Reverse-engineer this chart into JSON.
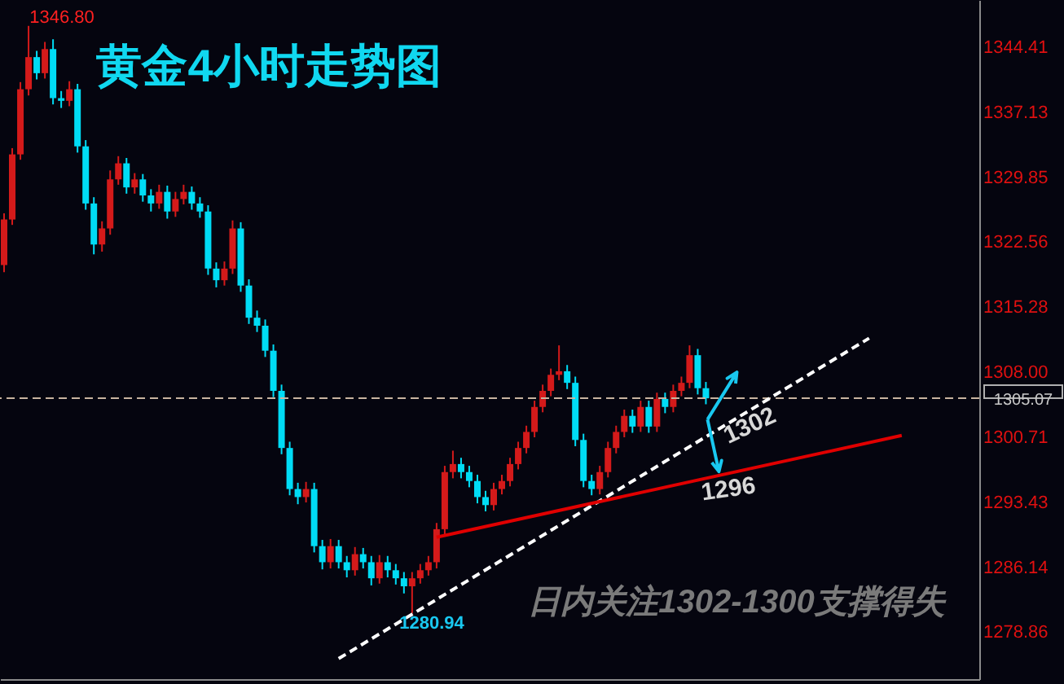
{
  "chart_data": {
    "type": "candlestick",
    "title": "黄金4小时走势图",
    "categories": [
      null,
      null,
      null,
      null,
      null,
      null,
      null,
      null,
      null,
      null,
      null,
      null,
      null,
      null,
      null,
      null,
      null,
      null,
      null,
      null,
      null,
      null,
      null,
      null,
      null,
      null,
      null,
      null,
      null,
      null,
      null,
      null,
      null,
      null,
      null,
      null,
      null,
      null,
      null,
      null,
      null,
      null,
      null,
      null,
      null,
      null,
      null,
      null,
      null,
      null,
      null,
      null,
      null,
      null,
      null,
      null,
      null,
      null,
      null,
      null,
      null,
      null,
      null,
      null,
      null,
      null,
      null,
      null,
      null,
      null,
      null,
      null,
      null,
      null,
      null,
      null,
      null,
      null,
      null,
      null,
      null,
      null,
      null,
      null,
      null,
      null,
      null,
      null,
      null,
      null,
      null,
      null,
      null,
      null,
      null,
      null,
      null,
      null,
      null,
      null,
      null,
      null,
      null,
      null,
      null,
      null,
      null,
      null,
      null,
      null,
      null,
      null,
      null,
      null,
      null,
      null,
      null,
      null,
      null,
      null
    ],
    "ohlc": [
      [
        1320.0,
        1325.8,
        1319.2,
        1325.1
      ],
      [
        1325.1,
        1333.1,
        1324.5,
        1332.4
      ],
      [
        1332.4,
        1340.5,
        1331.8,
        1339.7
      ],
      [
        1339.7,
        1346.8,
        1339.0,
        1343.3
      ],
      [
        1343.3,
        1344.0,
        1340.8,
        1341.5
      ],
      [
        1341.5,
        1345.0,
        1340.9,
        1344.2
      ],
      [
        1344.2,
        1345.3,
        1338.0,
        1338.7
      ],
      [
        1338.7,
        1339.5,
        1337.6,
        1338.4
      ],
      [
        1338.4,
        1340.6,
        1337.8,
        1339.7
      ],
      [
        1339.7,
        1340.3,
        1332.6,
        1333.3
      ],
      [
        1333.3,
        1334.0,
        1326.2,
        1326.9
      ],
      [
        1326.9,
        1327.6,
        1321.2,
        1322.3
      ],
      [
        1322.3,
        1324.9,
        1321.5,
        1324.1
      ],
      [
        1324.1,
        1330.6,
        1323.4,
        1329.6
      ],
      [
        1329.6,
        1332.2,
        1329.0,
        1331.4
      ],
      [
        1331.4,
        1332.0,
        1328.0,
        1328.7
      ],
      [
        1328.7,
        1330.3,
        1328.0,
        1329.6
      ],
      [
        1329.6,
        1330.2,
        1327.1,
        1327.8
      ],
      [
        1327.8,
        1328.5,
        1326.0,
        1326.9
      ],
      [
        1326.9,
        1329.0,
        1326.3,
        1328.2
      ],
      [
        1328.2,
        1328.9,
        1325.2,
        1326.0
      ],
      [
        1326.0,
        1328.2,
        1325.4,
        1327.4
      ],
      [
        1327.4,
        1329.0,
        1326.8,
        1328.2
      ],
      [
        1328.2,
        1328.8,
        1326.2,
        1326.9
      ],
      [
        1326.9,
        1327.6,
        1325.3,
        1326.0
      ],
      [
        1326.0,
        1326.7,
        1318.9,
        1319.6
      ],
      [
        1319.6,
        1320.3,
        1317.5,
        1318.3
      ],
      [
        1318.3,
        1320.4,
        1317.7,
        1319.6
      ],
      [
        1319.6,
        1325.0,
        1319.0,
        1324.1
      ],
      [
        1324.1,
        1324.8,
        1317.0,
        1317.7
      ],
      [
        1317.7,
        1318.4,
        1313.4,
        1314.1
      ],
      [
        1314.1,
        1314.9,
        1312.5,
        1313.2
      ],
      [
        1313.2,
        1313.9,
        1309.7,
        1310.4
      ],
      [
        1310.4,
        1311.1,
        1305.2,
        1305.9
      ],
      [
        1305.9,
        1306.6,
        1298.8,
        1299.5
      ],
      [
        1299.5,
        1300.2,
        1294.2,
        1294.9
      ],
      [
        1294.9,
        1295.6,
        1293.2,
        1294.0
      ],
      [
        1294.0,
        1295.7,
        1293.4,
        1294.9
      ],
      [
        1294.9,
        1295.6,
        1287.8,
        1288.5
      ],
      [
        1288.5,
        1289.2,
        1285.9,
        1286.7
      ],
      [
        1286.7,
        1289.3,
        1286.0,
        1288.5
      ],
      [
        1288.5,
        1289.2,
        1286.0,
        1286.7
      ],
      [
        1286.7,
        1287.4,
        1285.0,
        1285.8
      ],
      [
        1285.8,
        1288.4,
        1285.2,
        1287.6
      ],
      [
        1287.6,
        1288.3,
        1286.0,
        1286.7
      ],
      [
        1286.7,
        1287.4,
        1284.1,
        1284.9
      ],
      [
        1284.9,
        1287.5,
        1284.3,
        1286.7
      ],
      [
        1286.7,
        1287.4,
        1285.0,
        1285.8
      ],
      [
        1285.8,
        1286.5,
        1284.2,
        1284.9
      ],
      [
        1284.9,
        1285.6,
        1283.2,
        1284.0
      ],
      [
        1284.0,
        1285.6,
        1280.94,
        1284.9
      ],
      [
        1284.9,
        1286.5,
        1284.3,
        1285.8
      ],
      [
        1285.8,
        1287.4,
        1285.2,
        1286.7
      ],
      [
        1286.7,
        1291.1,
        1286.0,
        1290.4
      ],
      [
        1290.4,
        1297.5,
        1289.7,
        1296.8
      ],
      [
        1296.8,
        1299.2,
        1296.1,
        1297.7
      ],
      [
        1297.7,
        1298.4,
        1296.1,
        1296.8
      ],
      [
        1296.8,
        1297.5,
        1295.1,
        1295.8
      ],
      [
        1295.8,
        1296.5,
        1293.3,
        1294.0
      ],
      [
        1294.0,
        1294.7,
        1292.4,
        1293.1
      ],
      [
        1293.1,
        1295.6,
        1292.5,
        1294.9
      ],
      [
        1294.9,
        1296.5,
        1294.3,
        1295.8
      ],
      [
        1295.8,
        1298.4,
        1295.2,
        1297.7
      ],
      [
        1297.7,
        1300.2,
        1297.1,
        1299.5
      ],
      [
        1299.5,
        1302.0,
        1298.9,
        1301.3
      ],
      [
        1301.3,
        1304.8,
        1300.7,
        1304.1
      ],
      [
        1304.1,
        1306.6,
        1303.5,
        1305.9
      ],
      [
        1305.9,
        1308.4,
        1305.3,
        1307.7
      ],
      [
        1307.7,
        1311.0,
        1307.1,
        1308.1
      ],
      [
        1308.1,
        1308.8,
        1306.1,
        1306.8
      ],
      [
        1306.8,
        1307.5,
        1299.7,
        1300.4
      ],
      [
        1300.4,
        1301.1,
        1295.1,
        1295.8
      ],
      [
        1295.8,
        1296.5,
        1294.2,
        1294.9
      ],
      [
        1294.9,
        1297.5,
        1294.3,
        1296.8
      ],
      [
        1296.8,
        1300.2,
        1296.2,
        1299.5
      ],
      [
        1299.5,
        1302.0,
        1298.9,
        1301.3
      ],
      [
        1301.3,
        1303.8,
        1300.7,
        1303.1
      ],
      [
        1303.1,
        1303.8,
        1301.2,
        1301.9
      ],
      [
        1301.9,
        1304.8,
        1301.3,
        1304.1
      ],
      [
        1304.1,
        1304.8,
        1301.2,
        1301.9
      ],
      [
        1301.9,
        1305.7,
        1301.3,
        1305.0
      ],
      [
        1305.0,
        1305.7,
        1303.4,
        1304.1
      ],
      [
        1304.1,
        1306.6,
        1303.5,
        1305.9
      ],
      [
        1305.9,
        1307.5,
        1305.3,
        1306.8
      ],
      [
        1306.8,
        1311.0,
        1306.2,
        1309.9
      ],
      [
        1309.9,
        1310.6,
        1305.5,
        1306.2
      ],
      [
        1306.2,
        1306.9,
        1304.4,
        1305.07
      ],
      null,
      null,
      null,
      null,
      null,
      null,
      null,
      null,
      null,
      null,
      null,
      null,
      null,
      null,
      null,
      null,
      null,
      null,
      null,
      null,
      null,
      null,
      null,
      null,
      null,
      null,
      null,
      null,
      null,
      null,
      null,
      null,
      null
    ],
    "series": [
      {
        "type": "line",
        "values": [
          null,
          null,
          null,
          null,
          null,
          null,
          null,
          null,
          null,
          null,
          null,
          null,
          null,
          null,
          null,
          null,
          null,
          null,
          null,
          null,
          null,
          null,
          null,
          null,
          null,
          null,
          null,
          null,
          null,
          null,
          null,
          null,
          null,
          null,
          null,
          null,
          null,
          null,
          null,
          null,
          null,
          1275.9,
          null,
          null,
          null,
          null,
          null,
          null,
          null,
          null,
          null,
          null,
          null,
          null,
          null,
          null,
          null,
          null,
          null,
          null,
          null,
          null,
          null,
          null,
          null,
          null,
          null,
          null,
          null,
          null,
          null,
          null,
          null,
          null,
          null,
          null,
          null,
          null,
          null,
          null,
          null,
          null,
          null,
          null,
          null,
          null,
          null,
          null,
          null,
          null,
          null,
          null,
          null,
          null,
          null,
          null,
          null,
          null,
          null,
          null,
          null,
          null,
          null,
          null,
          null,
          null,
          1311.8,
          null,
          null,
          null,
          null,
          null,
          null,
          null,
          null,
          null,
          null,
          null,
          null,
          null
        ],
        "color": "#ffffff",
        "line_style": "dashed"
      },
      {
        "type": "line",
        "values": [
          null,
          null,
          null,
          null,
          null,
          null,
          null,
          null,
          null,
          null,
          null,
          null,
          null,
          null,
          null,
          null,
          null,
          null,
          null,
          null,
          null,
          null,
          null,
          null,
          null,
          null,
          null,
          null,
          null,
          null,
          null,
          null,
          null,
          null,
          null,
          null,
          null,
          null,
          null,
          null,
          null,
          null,
          null,
          null,
          null,
          null,
          null,
          null,
          null,
          null,
          null,
          null,
          null,
          1289.5,
          null,
          null,
          null,
          null,
          null,
          null,
          null,
          null,
          null,
          null,
          null,
          null,
          null,
          null,
          null,
          null,
          null,
          null,
          null,
          null,
          null,
          null,
          null,
          null,
          null,
          null,
          null,
          null,
          null,
          null,
          null,
          null,
          null,
          null,
          null,
          null,
          null,
          null,
          null,
          null,
          null,
          null,
          null,
          null,
          null,
          null,
          null,
          null,
          null,
          null,
          null,
          null,
          null,
          null,
          null,
          null,
          1300.9,
          null,
          null,
          null,
          null,
          null,
          null,
          null,
          null,
          null
        ],
        "color": "#e00000",
        "line_style": "solid"
      }
    ],
    "ylim": [
      1273.6,
      1349.7
    ],
    "yticks": [
      1278.86,
      1286.14,
      1293.43,
      1300.71,
      {
        "value": 1308,
        "label": "1308.00"
      },
      1315.28,
      1322.56,
      1329.85,
      1337.13,
      1344.41
    ],
    "tick_labels": "y",
    "grid": false,
    "ref_lines": [
      {
        "axis": "y",
        "value": 1305.07,
        "label": "1305.07",
        "color": "#c8b4a0",
        "line_style": "dashed"
      }
    ],
    "annotations": [
      "1346.80",
      "1280.94",
      "1302",
      "1296",
      "日内关注1302-1300支撑得失"
    ]
  }
}
